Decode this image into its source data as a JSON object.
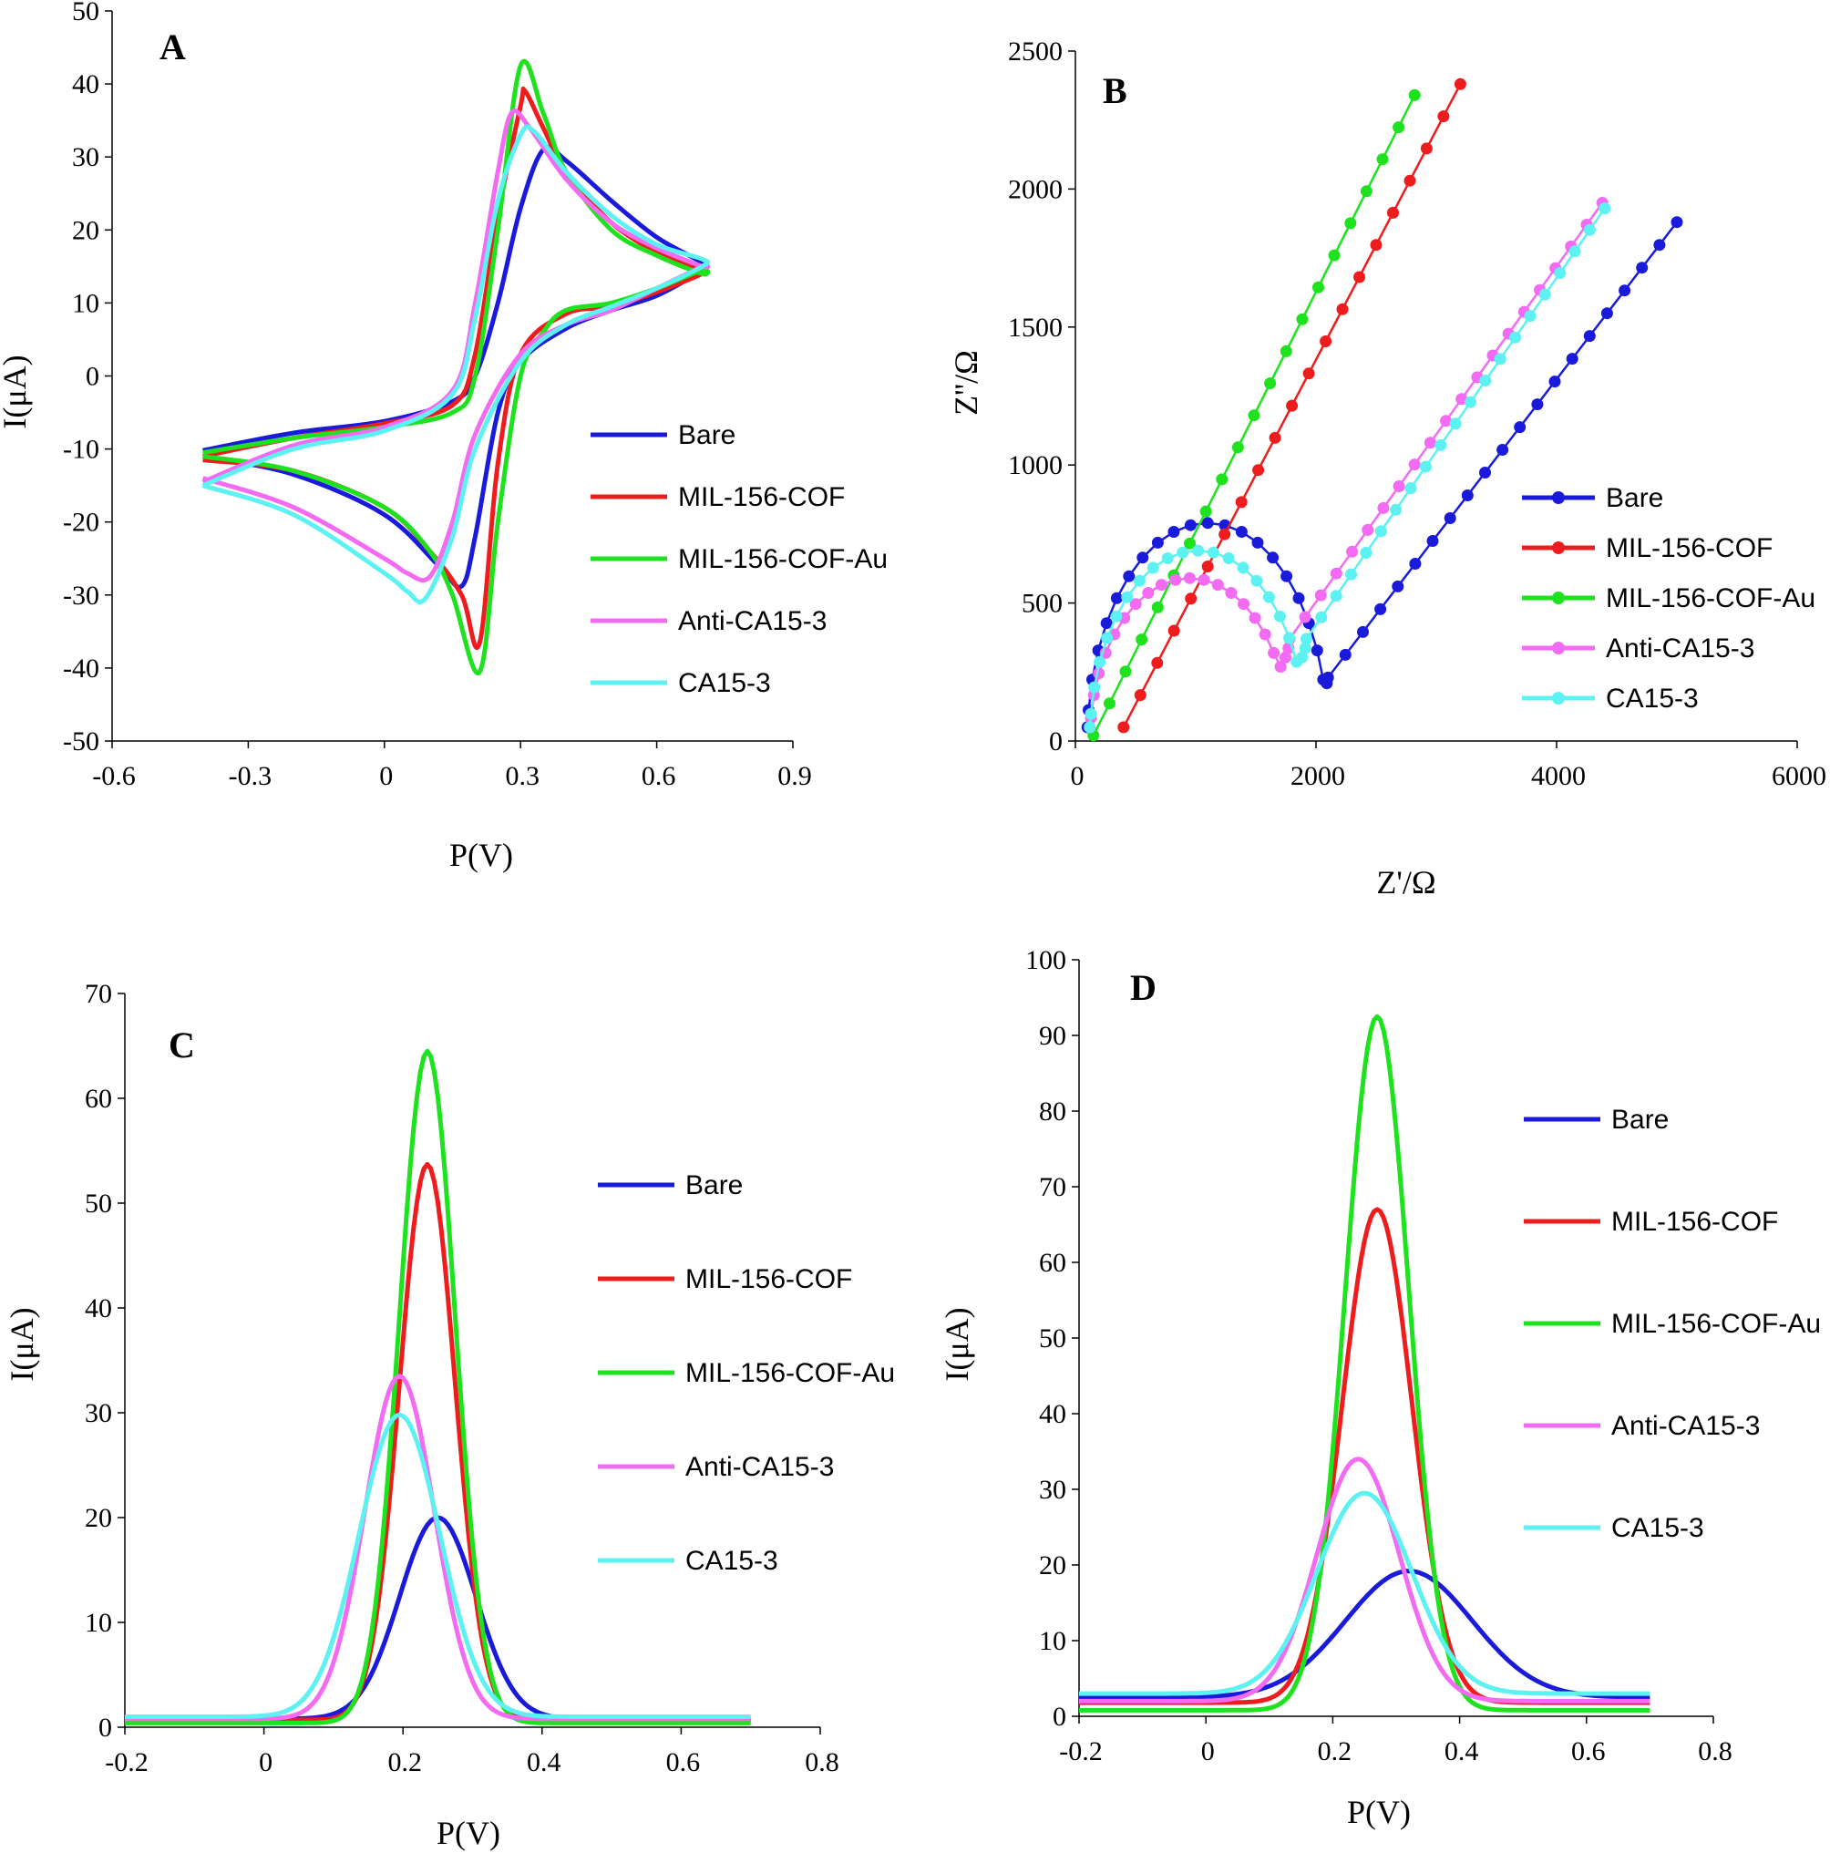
{
  "colors": {
    "Bare": "#1a1adb",
    "MIL-156-COF": "#ee1c1c",
    "MIL-156-COF-Au": "#1de21d",
    "Anti-CA15-3": "#f26bf2",
    "CA15-3": "#5cf2f2"
  },
  "chart_data": [
    {
      "panel": "A",
      "type": "line",
      "xlabel": "P(V)",
      "ylabel": "I(μA)",
      "xlim": [
        -0.6,
        0.9
      ],
      "ylim": [
        -50,
        50
      ],
      "xticks": [
        "-0.6",
        "-0.3",
        "0",
        "0.3",
        "0.6",
        "0.9"
      ],
      "yticks": [
        "-50",
        "-40",
        "-30",
        "-20",
        "-10",
        "0",
        "10",
        "20",
        "30",
        "40",
        "50"
      ],
      "legend": [
        "Bare",
        "MIL-156-COF",
        "MIL-156-COF-Au",
        "Anti-CA15-3",
        "CA15-3"
      ],
      "series": [
        {
          "name": "Bare",
          "forward": [
            [
              -0.4,
              -10.2
            ],
            [
              -0.2,
              -7.8
            ],
            [
              0,
              -6.2
            ],
            [
              0.15,
              -3.5
            ],
            [
              0.2,
              0
            ],
            [
              0.25,
              10
            ],
            [
              0.3,
              23
            ],
            [
              0.35,
              31
            ],
            [
              0.4,
              29.5
            ],
            [
              0.5,
              24
            ],
            [
              0.6,
              19
            ],
            [
              0.7,
              15.5
            ]
          ],
          "reverse": [
            [
              0.7,
              14.5
            ],
            [
              0.6,
              11
            ],
            [
              0.5,
              9
            ],
            [
              0.4,
              6.5
            ],
            [
              0.3,
              2
            ],
            [
              0.25,
              -5
            ],
            [
              0.2,
              -22
            ],
            [
              0.17,
              -28.8
            ],
            [
              0.12,
              -26
            ],
            [
              0,
              -19
            ],
            [
              -0.2,
              -13.5
            ],
            [
              -0.4,
              -11
            ]
          ]
        },
        {
          "name": "MIL-156-COF",
          "forward": [
            [
              -0.4,
              -11
            ],
            [
              -0.2,
              -8.5
            ],
            [
              0,
              -6.5
            ],
            [
              0.15,
              -4
            ],
            [
              0.2,
              3
            ],
            [
              0.25,
              22
            ],
            [
              0.3,
              37
            ],
            [
              0.31,
              39
            ],
            [
              0.35,
              34
            ],
            [
              0.4,
              28
            ],
            [
              0.5,
              21
            ],
            [
              0.6,
              17
            ],
            [
              0.7,
              14.5
            ]
          ],
          "reverse": [
            [
              0.7,
              14
            ],
            [
              0.6,
              11.5
            ],
            [
              0.5,
              9.5
            ],
            [
              0.4,
              8.5
            ],
            [
              0.3,
              3
            ],
            [
              0.25,
              -12
            ],
            [
              0.21,
              -36.5
            ],
            [
              0.17,
              -30
            ],
            [
              0.1,
              -24
            ],
            [
              0,
              -18
            ],
            [
              -0.2,
              -13
            ],
            [
              -0.4,
              -11.5
            ]
          ]
        },
        {
          "name": "MIL-156-COF-Au",
          "forward": [
            [
              -0.4,
              -10.5
            ],
            [
              -0.2,
              -8.5
            ],
            [
              0,
              -7
            ],
            [
              0.15,
              -5
            ],
            [
              0.2,
              0
            ],
            [
              0.25,
              20
            ],
            [
              0.3,
              42.5
            ],
            [
              0.35,
              36
            ],
            [
              0.4,
              28
            ],
            [
              0.5,
              20
            ],
            [
              0.6,
              16.5
            ],
            [
              0.7,
              14
            ]
          ],
          "reverse": [
            [
              0.7,
              14.5
            ],
            [
              0.6,
              12
            ],
            [
              0.5,
              10
            ],
            [
              0.4,
              9
            ],
            [
              0.35,
              6
            ],
            [
              0.3,
              0
            ],
            [
              0.25,
              -20
            ],
            [
              0.21,
              -40.5
            ],
            [
              0.15,
              -30
            ],
            [
              0.1,
              -24
            ],
            [
              0,
              -18
            ],
            [
              -0.2,
              -13
            ],
            [
              -0.4,
              -11
            ]
          ]
        },
        {
          "name": "Anti-CA15-3",
          "forward": [
            [
              -0.4,
              -14.5
            ],
            [
              -0.2,
              -9.5
            ],
            [
              0,
              -7
            ],
            [
              0.15,
              -2
            ],
            [
              0.2,
              10
            ],
            [
              0.25,
              28
            ],
            [
              0.28,
              36
            ],
            [
              0.32,
              34
            ],
            [
              0.4,
              27
            ],
            [
              0.5,
              21
            ],
            [
              0.6,
              17.5
            ],
            [
              0.7,
              15
            ]
          ],
          "reverse": [
            [
              0.7,
              15
            ],
            [
              0.6,
              12
            ],
            [
              0.5,
              9
            ],
            [
              0.4,
              7
            ],
            [
              0.3,
              3
            ],
            [
              0.2,
              -8
            ],
            [
              0.15,
              -20
            ],
            [
              0.1,
              -27.5
            ],
            [
              0.05,
              -27
            ],
            [
              0,
              -25
            ],
            [
              -0.2,
              -18
            ],
            [
              -0.4,
              -14
            ]
          ]
        },
        {
          "name": "CA15-3",
          "forward": [
            [
              -0.4,
              -15
            ],
            [
              -0.2,
              -10
            ],
            [
              0,
              -7.5
            ],
            [
              0.15,
              -2.5
            ],
            [
              0.2,
              8
            ],
            [
              0.25,
              24
            ],
            [
              0.3,
              33
            ],
            [
              0.33,
              33.5
            ],
            [
              0.4,
              28
            ],
            [
              0.5,
              22
            ],
            [
              0.6,
              18
            ],
            [
              0.7,
              16
            ]
          ],
          "reverse": [
            [
              0.7,
              15
            ],
            [
              0.6,
              12
            ],
            [
              0.5,
              9.5
            ],
            [
              0.4,
              7
            ],
            [
              0.3,
              2
            ],
            [
              0.2,
              -10
            ],
            [
              0.15,
              -22
            ],
            [
              0.09,
              -30.5
            ],
            [
              0.05,
              -29.5
            ],
            [
              0,
              -27
            ],
            [
              -0.2,
              -19
            ],
            [
              -0.4,
              -15
            ]
          ]
        }
      ]
    },
    {
      "panel": "B",
      "type": "scatter",
      "xlabel": "Z'/Ω",
      "ylabel": "Z''/Ω",
      "xlim": [
        0,
        6000
      ],
      "ylim": [
        0,
        2500
      ],
      "xticks": [
        "0",
        "2000",
        "4000",
        "6000"
      ],
      "yticks": [
        "0",
        "500",
        "1000",
        "1500",
        "2000",
        "2500"
      ],
      "legend": [
        "Bare",
        "MIL-156-COF",
        "MIL-156-COF-Au",
        "Anti-CA15-3",
        "CA15-3"
      ],
      "series": [
        {
          "name": "Bare",
          "semicircle": {
            "start": 100,
            "end": 2100,
            "peak": 790,
            "min": 230
          },
          "line_end": [
            5000,
            1880
          ]
        },
        {
          "name": "MIL-156-COF",
          "semicircle": {
            "start": 400,
            "end": 400,
            "peak": 50,
            "min": 50
          },
          "line_end": [
            3200,
            2380
          ]
        },
        {
          "name": "MIL-156-COF-Au",
          "semicircle": {
            "start": 150,
            "end": 150,
            "peak": 20,
            "min": 20
          },
          "line_end": [
            2820,
            2340
          ]
        },
        {
          "name": "Anti-CA15-3",
          "semicircle": {
            "start": 120,
            "end": 1780,
            "peak": 590,
            "min": 370
          },
          "line_end": [
            4380,
            1950
          ]
        },
        {
          "name": "CA15-3",
          "semicircle": {
            "start": 120,
            "end": 1920,
            "peak": 690,
            "min": 370
          },
          "line_end": [
            4400,
            1930
          ]
        }
      ]
    },
    {
      "panel": "C",
      "type": "line",
      "xlabel": "P(V)",
      "ylabel": "I(μA)",
      "xlim": [
        -0.2,
        0.8
      ],
      "ylim": [
        0,
        70
      ],
      "xticks": [
        "-0.2",
        "0",
        "0.2",
        "0.4",
        "0.6",
        "0.8"
      ],
      "yticks": [
        "0",
        "10",
        "20",
        "30",
        "40",
        "50",
        "60",
        "70"
      ],
      "legend": [
        "Bare",
        "MIL-156-COF",
        "MIL-156-COF-Au",
        "Anti-CA15-3",
        "CA15-3"
      ],
      "series": [
        {
          "name": "Bare",
          "peak_x": 0.25,
          "peak_y": 20,
          "width": 0.055,
          "baseline": 0.8
        },
        {
          "name": "MIL-156-COF",
          "peak_x": 0.235,
          "peak_y": 53.7,
          "width": 0.04,
          "baseline": 0.7
        },
        {
          "name": "MIL-156-COF-Au",
          "peak_x": 0.235,
          "peak_y": 64.5,
          "width": 0.04,
          "baseline": 0.4
        },
        {
          "name": "Anti-CA15-3",
          "peak_x": 0.195,
          "peak_y": 33.5,
          "width": 0.05,
          "baseline": 0.8
        },
        {
          "name": "CA15-3",
          "peak_x": 0.195,
          "peak_y": 29.8,
          "width": 0.058,
          "baseline": 1.0
        }
      ]
    },
    {
      "panel": "D",
      "type": "line",
      "xlabel": "P(V)",
      "ylabel": "I(μA)",
      "xlim": [
        -0.2,
        0.8
      ],
      "ylim": [
        0,
        100
      ],
      "xticks": [
        "-0.2",
        "0",
        "0.2",
        "0.4",
        "0.6",
        "0.8"
      ],
      "yticks": [
        "0",
        "10",
        "20",
        "30",
        "40",
        "50",
        "60",
        "70",
        "80",
        "90",
        "100"
      ],
      "legend": [
        "Bare",
        "MIL-156-COF",
        "MIL-156-COF-Au",
        "Anti-CA15-3",
        "CA15-3"
      ],
      "series": [
        {
          "name": "Bare",
          "peak_x": 0.32,
          "peak_y": 19.2,
          "width": 0.1,
          "baseline": 2.5
        },
        {
          "name": "MIL-156-COF",
          "peak_x": 0.27,
          "peak_y": 67,
          "width": 0.055,
          "baseline": 1.8
        },
        {
          "name": "MIL-156-COF-Au",
          "peak_x": 0.27,
          "peak_y": 92.5,
          "width": 0.05,
          "baseline": 0.8
        },
        {
          "name": "Anti-CA15-3",
          "peak_x": 0.24,
          "peak_y": 34,
          "width": 0.065,
          "baseline": 2.0
        },
        {
          "name": "CA15-3",
          "peak_x": 0.25,
          "peak_y": 29.5,
          "width": 0.075,
          "baseline": 3.0
        }
      ]
    }
  ]
}
